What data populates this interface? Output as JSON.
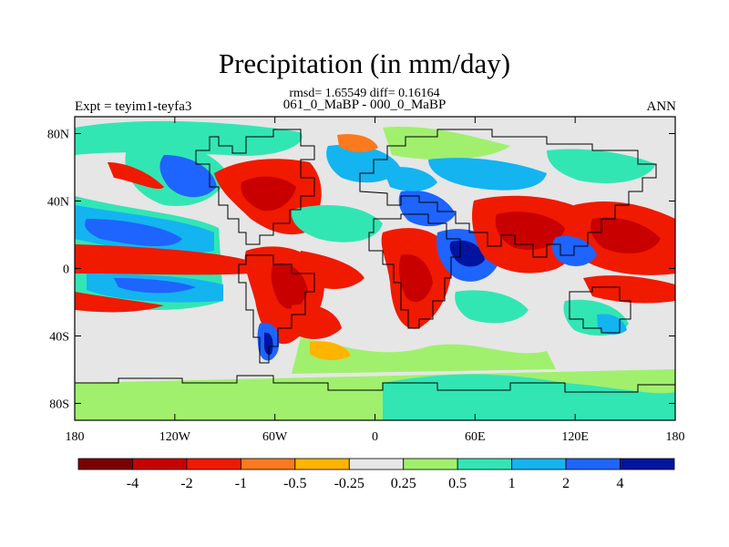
{
  "title": "Precipitation (in mm/day)",
  "stats_line": "rmsd= 1.65549 diff= 0.16164",
  "comparison_line": "061_0_MaBP - 000_0_MaBP",
  "experiment_label": "Expt = teyim1-teyfa3",
  "season_label": "ANN",
  "y_axis": {
    "ticks": [
      "80N",
      "40N",
      "0",
      "40S",
      "80S"
    ],
    "values": [
      80,
      40,
      0,
      -40,
      -80
    ],
    "range": [
      -90,
      90
    ]
  },
  "x_axis": {
    "ticks": [
      "180",
      "120W",
      "60W",
      "0",
      "60E",
      "120E",
      "180"
    ],
    "values": [
      -180,
      -120,
      -60,
      0,
      60,
      120,
      180
    ],
    "range": [
      -180,
      180
    ]
  },
  "colorbar": {
    "colors": [
      "#7a0000",
      "#c80000",
      "#f01a00",
      "#fb7a1e",
      "#ffb400",
      "#e6e6e6",
      "#a0f06e",
      "#32e6b4",
      "#14b4f0",
      "#1e64ff",
      "#0014a0"
    ],
    "labels": [
      "-4",
      "-2",
      "-1",
      "-0.5",
      "-0.25",
      "0.25",
      "0.5",
      "1",
      "2",
      "4"
    ]
  },
  "field_colors": {
    "background": "#e6e6e6",
    "coast": "#000000"
  }
}
